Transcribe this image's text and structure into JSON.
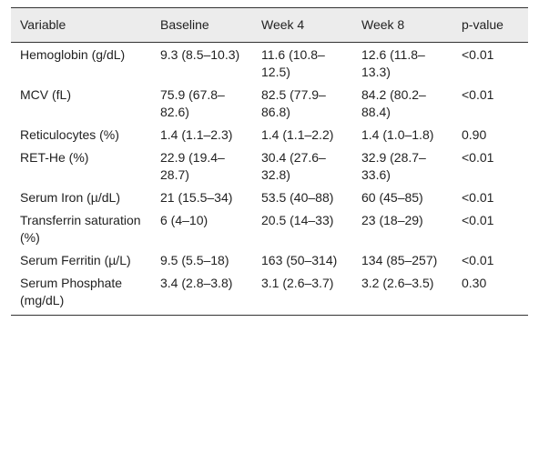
{
  "table": {
    "header": [
      "Variable",
      "Baseline",
      "Week 4",
      "Week 8",
      "p-value"
    ],
    "rows": [
      [
        "Hemoglobin (g/dL)",
        "9.3 (8.5–10.3)",
        "11.6 (10.8–12.5)",
        "12.6 (11.8–13.3)",
        "<0.01"
      ],
      [
        "MCV (fL)",
        "75.9 (67.8–82.6)",
        "82.5 (77.9–86.8)",
        "84.2 (80.2–88.4)",
        "<0.01"
      ],
      [
        "Reticulocytes (%)",
        "1.4 (1.1–2.3)",
        "1.4 (1.1–2.2)",
        "1.4 (1.0–1.8)",
        "0.90"
      ],
      [
        "RET-He (%)",
        "22.9 (19.4–28.7)",
        "30.4 (27.6–32.8)",
        "32.9 (28.7–33.6)",
        "<0.01"
      ],
      [
        "Serum Iron (µ/dL)",
        "21 (15.5–34)",
        "53.5 (40–88)",
        "60 (45–85)",
        "<0.01"
      ],
      [
        "Transferrin saturation (%)",
        "6 (4–10)",
        "20.5 (14–33)",
        "23 (18–29)",
        "<0.01"
      ],
      [
        "Serum Ferritin (µ/L)",
        "9.5 (5.5–18)",
        "163 (50–314)",
        "134 (85–257)",
        "<0.01"
      ],
      [
        "Serum Phosphate (mg/dL)",
        "3.4 (2.8–3.8)",
        "3.1 (2.6–3.7)",
        "3.2 (2.6–3.5)",
        "0.30"
      ]
    ]
  }
}
